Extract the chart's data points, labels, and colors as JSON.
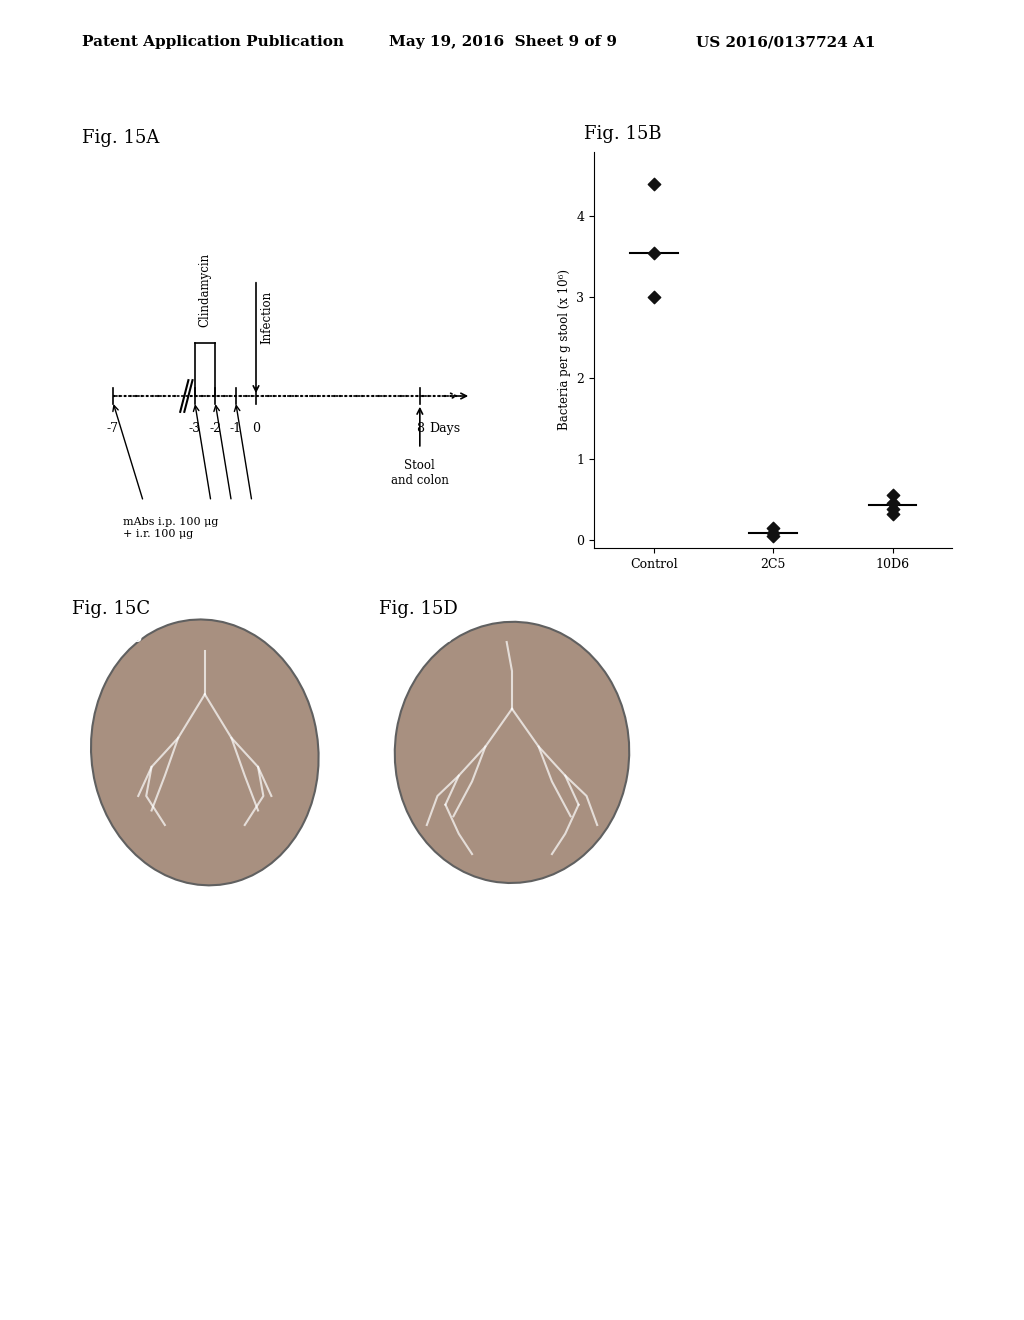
{
  "header_left": "Patent Application Publication",
  "header_mid": "May 19, 2016  Sheet 9 of 9",
  "header_right": "US 2016/0137724 A1",
  "fig15A_label": "Fig. 15A",
  "fig15B_label": "Fig. 15B",
  "fig15C_label": "Fig. 15C",
  "fig15D_label": "Fig. 15D",
  "timeline_points": [
    -7,
    -3,
    -2,
    -1,
    0,
    8
  ],
  "timeline_labels": [
    "-7",
    "-3",
    "-2",
    "-1",
    "0",
    "8 Days"
  ],
  "clindamycin_label": "Clindamycin",
  "infection_label": "Infection",
  "stool_label": "Stool\nand colon",
  "mabs_label": "mAbs i.p. 100 μg\n+ i.r. 100 μg",
  "ylabel_15B": "Bacteria per g stool (x 10⁶)",
  "x_labels_15B": [
    "Control",
    "2C5",
    "10D6"
  ],
  "control_points": [
    4.4,
    3.55,
    3.0
  ],
  "control_median": 3.55,
  "c2c5_points": [
    0.15,
    0.08,
    0.05
  ],
  "c2c5_median": 0.08,
  "d10d6_points": [
    0.55,
    0.45,
    0.38,
    0.32
  ],
  "d10d6_median": 0.43,
  "yticks": [
    0,
    1,
    2,
    3,
    4
  ],
  "bg_color": "#ffffff",
  "text_color": "#000000",
  "dot_color": "#111111"
}
